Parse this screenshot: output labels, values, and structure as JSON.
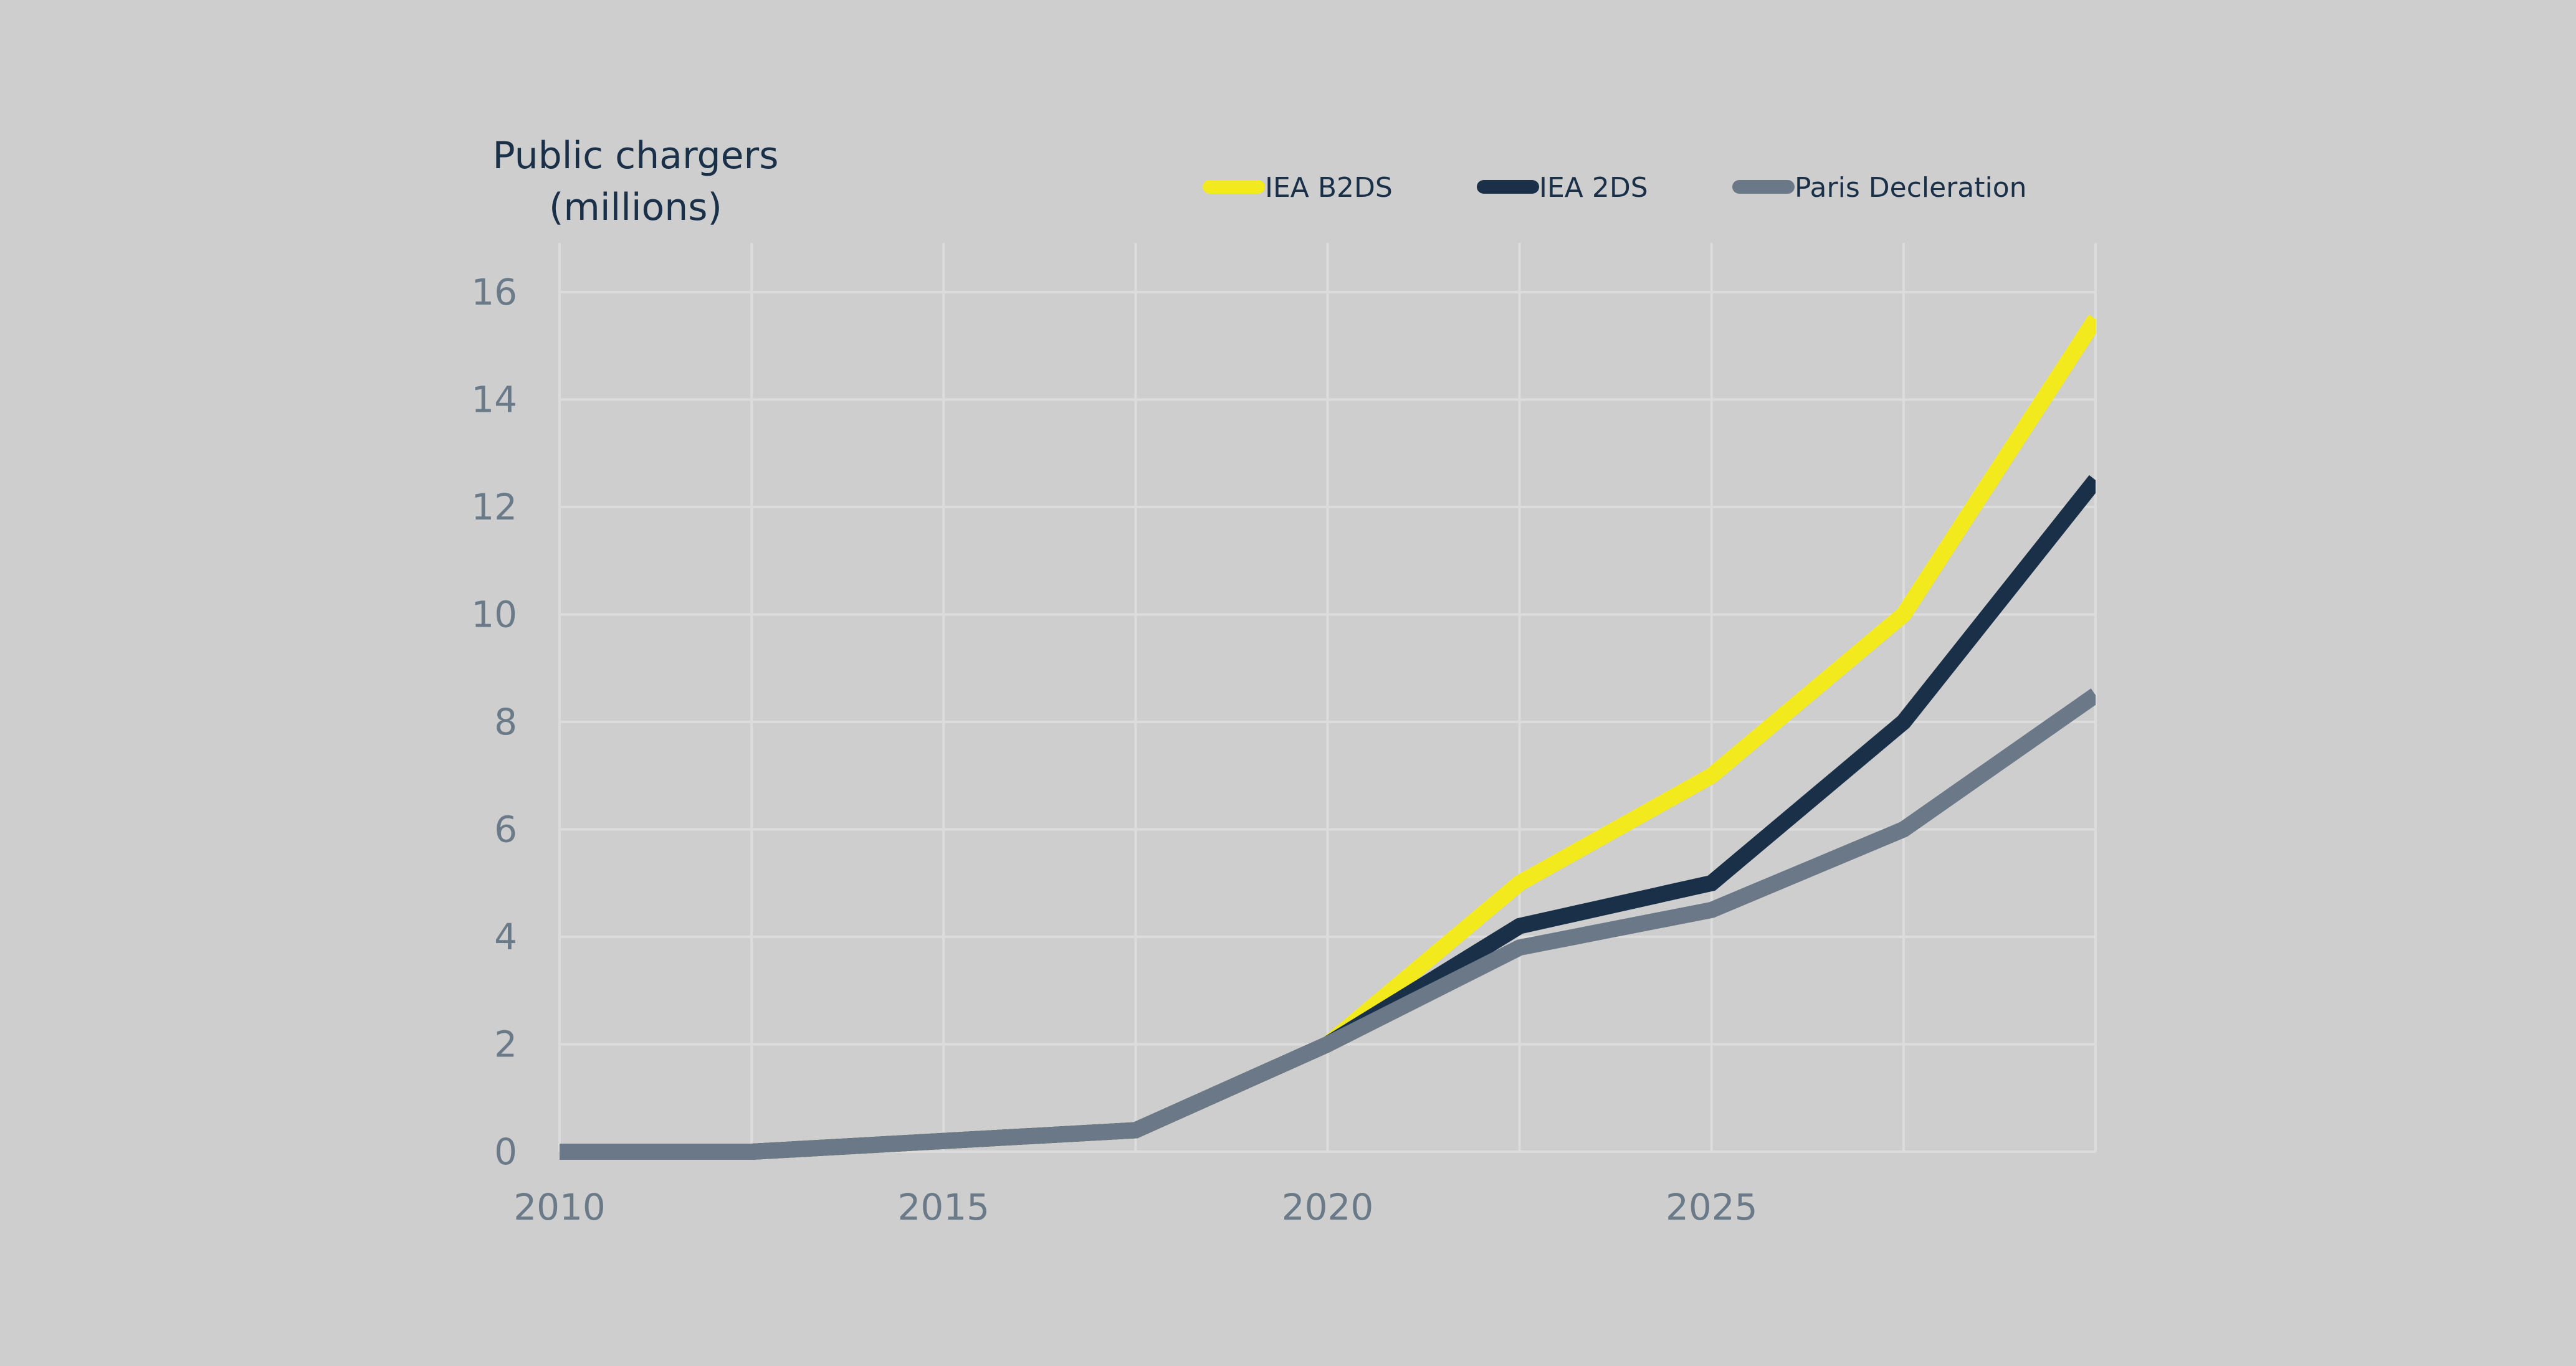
{
  "chart_data": {
    "type": "line",
    "title": "",
    "ylabel_lines": [
      "Public chargers",
      "(millions)"
    ],
    "xlabel": "",
    "x": [
      2010,
      2012.5,
      2015,
      2017.5,
      2020,
      2022.5,
      2025,
      2027.5,
      2030
    ],
    "xlim": [
      2010,
      2030
    ],
    "ylim": [
      0,
      16
    ],
    "xticks": [
      2010,
      2015,
      2020,
      2025
    ],
    "xtick_labels": [
      "2010",
      "2015",
      "2020",
      "2025"
    ],
    "x_gridlines": [
      2010,
      2012.5,
      2015,
      2017.5,
      2020,
      2022.5,
      2025,
      2027.5,
      2030
    ],
    "yticks": [
      0,
      2,
      4,
      6,
      8,
      10,
      12,
      14,
      16
    ],
    "ytick_labels": [
      "0",
      "2",
      "4",
      "6",
      "8",
      "10",
      "12",
      "14",
      "16"
    ],
    "grid": true,
    "legend_position": "top",
    "series": [
      {
        "name": "IEA B2DS",
        "color": "#f2ea1c",
        "values": [
          0,
          0,
          0.2,
          0.4,
          2,
          5,
          7,
          10,
          15.5
        ]
      },
      {
        "name": "IEA 2DS",
        "color": "#1a3049",
        "values": [
          0,
          0,
          0.2,
          0.4,
          2,
          4.2,
          5,
          8,
          12.5
        ]
      },
      {
        "name": "Paris Decleration",
        "color": "#6a7888",
        "values": [
          0,
          0,
          0.2,
          0.4,
          2,
          3.8,
          4.5,
          6,
          8.5
        ]
      }
    ]
  },
  "colors": {
    "background": "#cecece",
    "grid": "#dcdcdc",
    "tick_text": "#6a7a88",
    "title_text": "#1a3049"
  }
}
